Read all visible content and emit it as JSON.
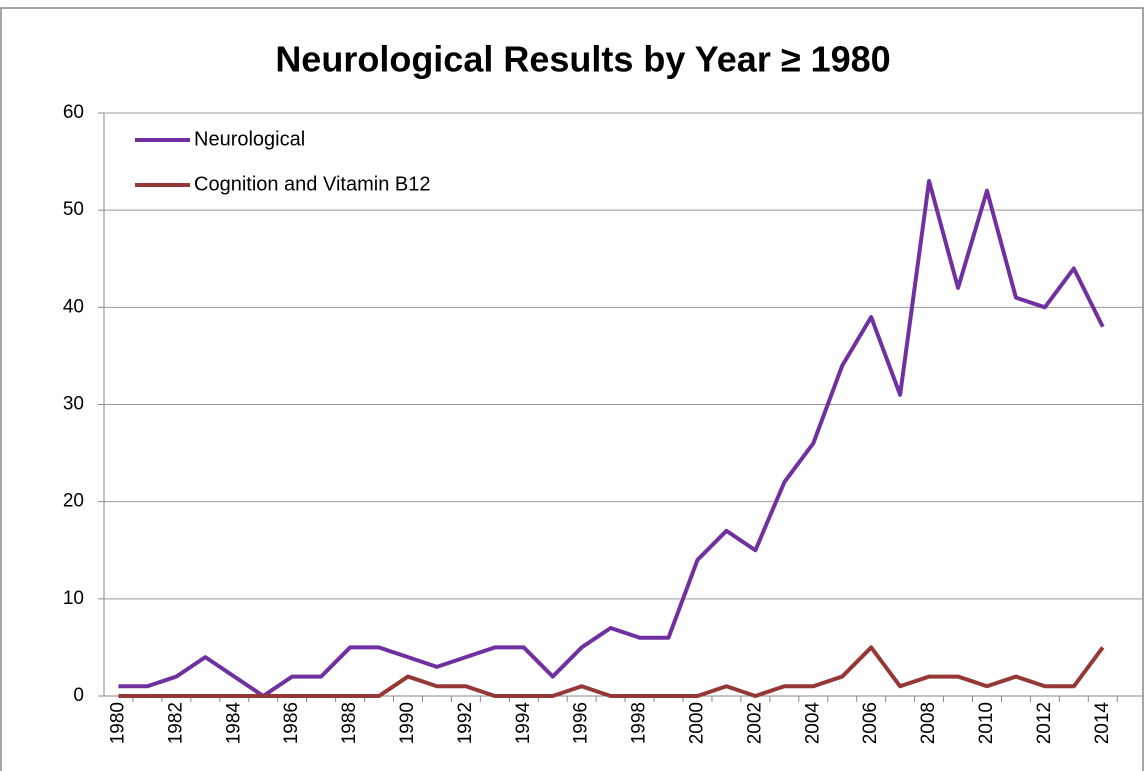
{
  "chart_data": {
    "type": "line",
    "title": "Neurological Results by Year ≥ 1980",
    "categories": [
      "1980",
      null,
      "1982",
      null,
      "1984",
      null,
      "1986",
      null,
      "1988",
      null,
      "1990",
      null,
      "1992",
      null,
      "1994",
      null,
      "1996",
      null,
      "1998",
      null,
      "2000",
      null,
      "2002",
      null,
      "2004",
      null,
      "2006",
      null,
      "2008",
      null,
      "2010",
      null,
      "2012",
      null,
      "2014"
    ],
    "series": [
      {
        "name": "Neurological",
        "color": "#7030a0",
        "values": [
          1,
          1,
          2,
          4,
          2,
          0,
          2,
          2,
          5,
          5,
          4,
          3,
          4,
          5,
          5,
          2,
          5,
          7,
          6,
          6,
          14,
          17,
          15,
          22,
          26,
          34,
          39,
          31,
          53,
          42,
          52,
          41,
          40,
          44,
          38
        ]
      },
      {
        "name": "Cognition and Vitamin B12",
        "color": "#953735",
        "values": [
          0,
          0,
          0,
          0,
          0,
          0,
          0,
          0,
          0,
          0,
          2,
          1,
          1,
          0,
          0,
          0,
          1,
          0,
          0,
          0,
          0,
          1,
          0,
          1,
          1,
          2,
          5,
          1,
          2,
          2,
          1,
          2,
          1,
          1,
          5
        ]
      }
    ],
    "ylim": [
      0,
      60
    ],
    "yticks": [
      0,
      10,
      20,
      30,
      40,
      50,
      60
    ],
    "grid": true,
    "legend": "top-left"
  }
}
